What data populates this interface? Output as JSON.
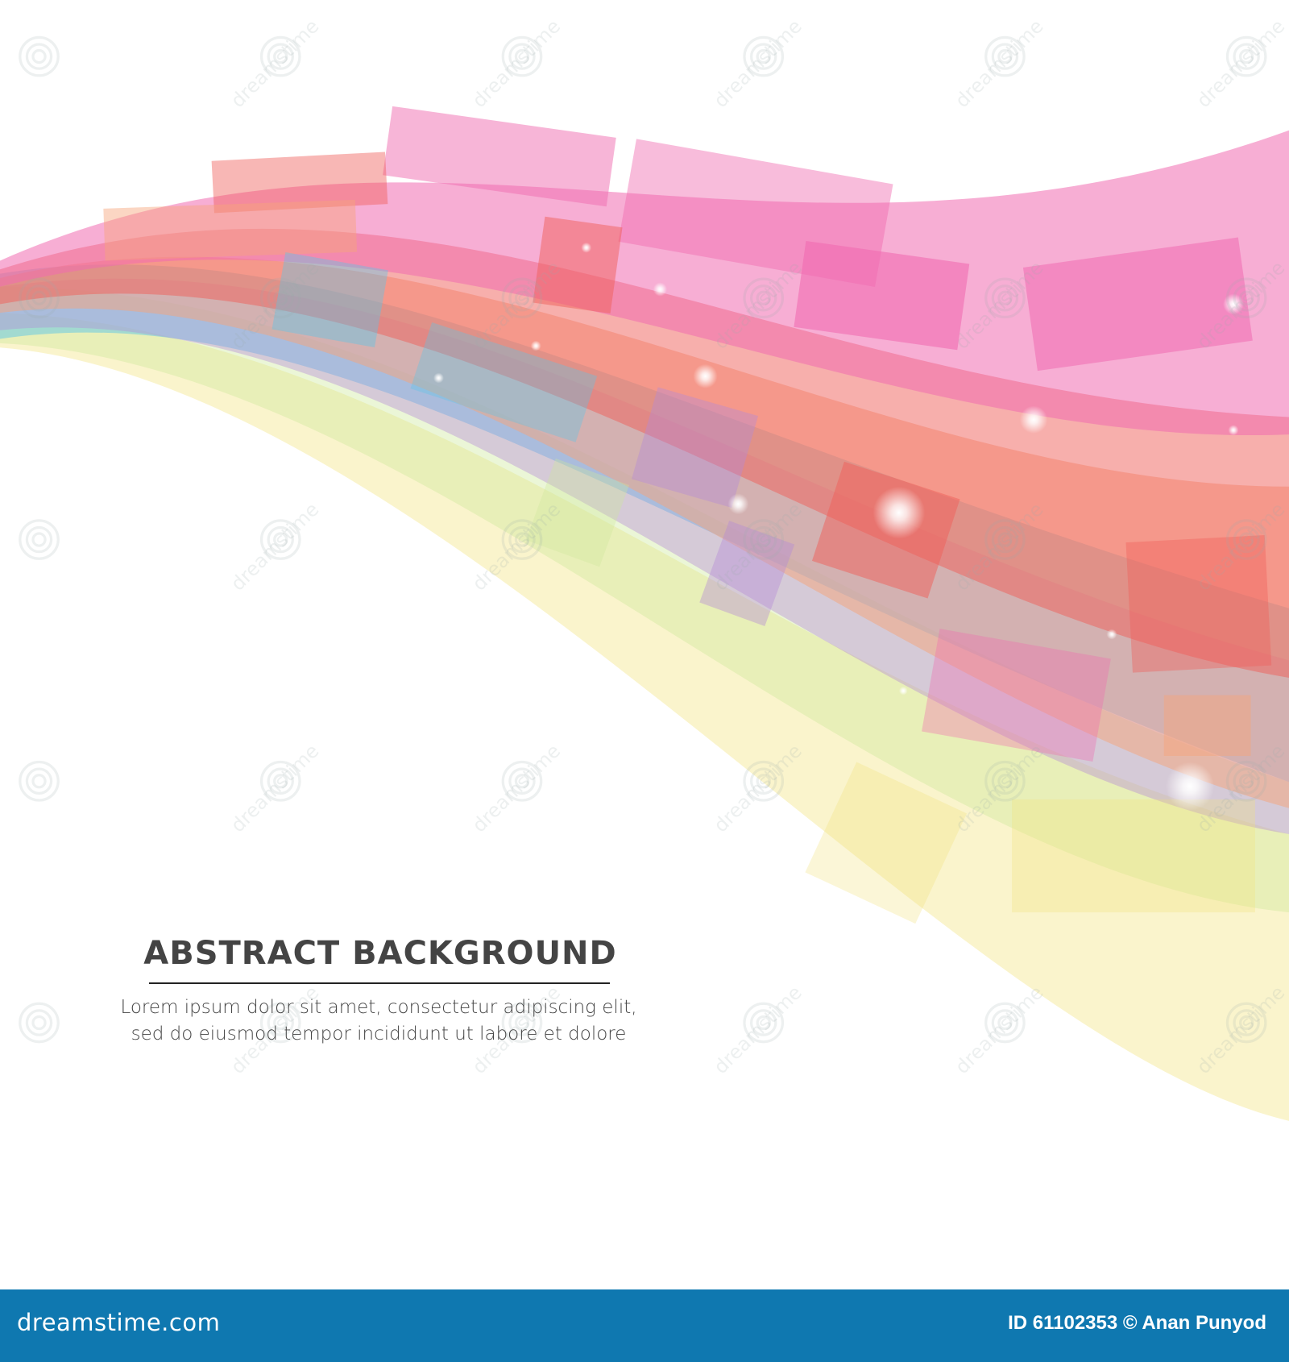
{
  "heading": {
    "title": "ABSTRACT BACKGROUND",
    "body_line1": "Lorem ipsum dolor sit amet, consectetur adipiscing elit,",
    "body_line2": "sed do eiusmod tempor incididunt ut labore et dolore"
  },
  "footer": {
    "logo": "dreamstime.com",
    "credit": "ID 61102353 © Anan Punyod",
    "background": "#0f78b0"
  },
  "watermark": {
    "text": "dreamstime",
    "icon": "spiral-icon"
  },
  "colors": {
    "pink": "#f06bb0",
    "red": "#f0605a",
    "orange": "#f6a37a",
    "violet": "#b58ad8",
    "cyan": "#5bc6e8",
    "green": "#cde89a",
    "yellow": "#f2e27a",
    "text": "#444444"
  }
}
